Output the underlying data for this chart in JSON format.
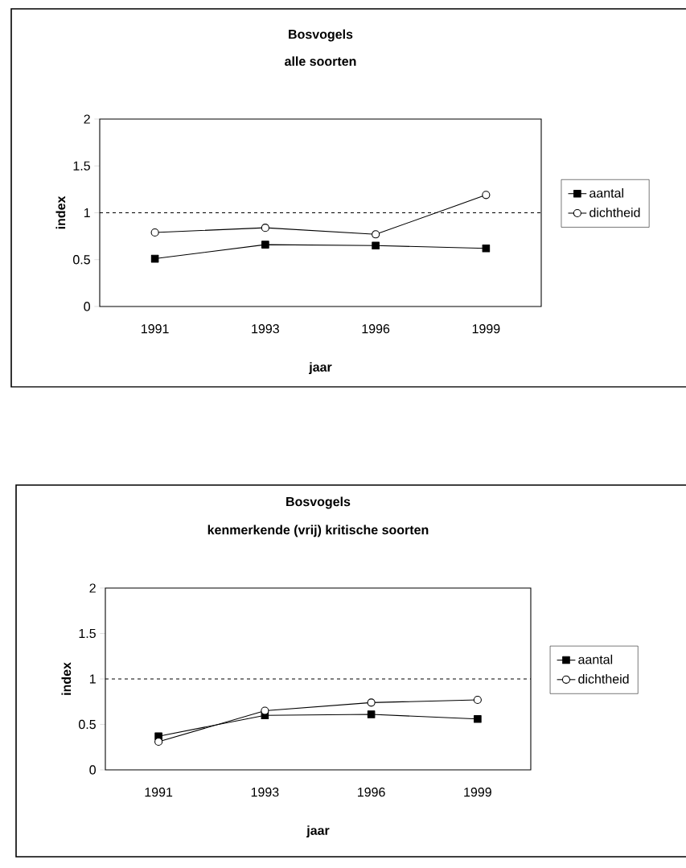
{
  "chart_data": [
    {
      "type": "line",
      "title": "Bosvogels",
      "subtitle": "alle soorten",
      "xlabel": "jaar",
      "ylabel": "index",
      "categories": [
        "1991",
        "1993",
        "1996",
        "1999"
      ],
      "series": [
        {
          "name": "aantal",
          "color": "#000000",
          "marker": "square",
          "values": [
            0.51,
            0.66,
            0.65,
            0.62
          ]
        },
        {
          "name": "dichtheid",
          "color": "#000000",
          "marker": "circle",
          "values": [
            0.79,
            0.84,
            0.77,
            1.19
          ]
        }
      ],
      "ylim": [
        0,
        2
      ],
      "yticks": [
        0,
        0.5,
        1,
        1.5,
        2
      ],
      "ref_lines": [
        {
          "axis": "y",
          "value": 1,
          "line_style": "dashed",
          "color": "#000000"
        }
      ],
      "legend": "right",
      "line_style": "solid"
    },
    {
      "type": "line",
      "title": "Bosvogels",
      "subtitle": "kenmerkende (vrij) kritische soorten",
      "xlabel": "jaar",
      "ylabel": "index",
      "categories": [
        "1991",
        "1993",
        "1996",
        "1999"
      ],
      "series": [
        {
          "name": "aantal",
          "color": "#000000",
          "marker": "square",
          "values": [
            0.37,
            0.6,
            0.61,
            0.56
          ]
        },
        {
          "name": "dichtheid",
          "color": "#000000",
          "marker": "circle",
          "values": [
            0.31,
            0.65,
            0.74,
            0.77
          ]
        }
      ],
      "ylim": [
        0,
        2
      ],
      "yticks": [
        0,
        0.5,
        1,
        1.5,
        2
      ],
      "ref_lines": [
        {
          "axis": "y",
          "value": 1,
          "line_style": "dashed",
          "color": "#000000"
        }
      ],
      "legend": "right",
      "line_style": "solid"
    }
  ]
}
